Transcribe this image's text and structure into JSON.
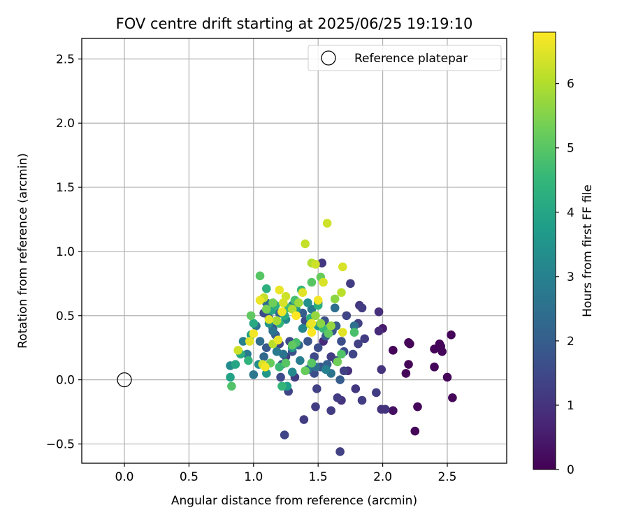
{
  "chart_data": {
    "type": "scatter",
    "title": "FOV centre drift starting at 2025/06/25 19:19:10",
    "xlabel": "Angular distance from reference (arcmin)",
    "ylabel": "Rotation from reference (arcmin)",
    "xlim": [
      -0.33,
      2.96
    ],
    "ylim": [
      -0.65,
      2.66
    ],
    "xticks": [
      0.0,
      0.5,
      1.0,
      1.5,
      2.0,
      2.5
    ],
    "xtick_labels": [
      "0.0",
      "0.5",
      "1.0",
      "1.5",
      "2.0",
      "2.5"
    ],
    "yticks": [
      -0.5,
      0.0,
      0.5,
      1.0,
      1.5,
      2.0,
      2.5
    ],
    "ytick_labels": [
      "−0.5",
      "0.0",
      "0.5",
      "1.0",
      "1.5",
      "2.0",
      "2.5"
    ],
    "grid": true,
    "legend": {
      "position": "upper right",
      "entries": [
        "Reference platepar"
      ]
    },
    "reference_point": {
      "x": 0.0,
      "y": 0.0,
      "label": "Reference platepar"
    },
    "colorbar": {
      "label": "Hours from first FF file",
      "colormap": "viridis",
      "range": [
        0,
        6.8
      ],
      "ticks": [
        0,
        1,
        2,
        3,
        4,
        5,
        6
      ],
      "tick_labels": [
        "0",
        "1",
        "2",
        "3",
        "4",
        "5",
        "6"
      ],
      "stops": [
        "#440154",
        "#482878",
        "#3e4a89",
        "#31688e",
        "#26828e",
        "#1f9e89",
        "#35b779",
        "#6ece58",
        "#b5de2b",
        "#fde725"
      ]
    },
    "points": [
      {
        "x": 2.08,
        "y": 0.23,
        "h": 0.1
      },
      {
        "x": 2.2,
        "y": 0.29,
        "h": 0.1
      },
      {
        "x": 2.21,
        "y": 0.28,
        "h": 0.1
      },
      {
        "x": 2.18,
        "y": 0.05,
        "h": 0.1
      },
      {
        "x": 2.2,
        "y": 0.12,
        "h": 0.1
      },
      {
        "x": 2.25,
        "y": -0.4,
        "h": 0.1
      },
      {
        "x": 2.27,
        "y": -0.21,
        "h": 0.1
      },
      {
        "x": 2.4,
        "y": 0.24,
        "h": 0.1
      },
      {
        "x": 2.44,
        "y": 0.28,
        "h": 0.1
      },
      {
        "x": 2.45,
        "y": 0.26,
        "h": 0.1
      },
      {
        "x": 2.46,
        "y": 0.22,
        "h": 0.1
      },
      {
        "x": 2.4,
        "y": 0.1,
        "h": 0.1
      },
      {
        "x": 2.5,
        "y": 0.02,
        "h": 0.1
      },
      {
        "x": 2.53,
        "y": 0.35,
        "h": 0.1
      },
      {
        "x": 2.54,
        "y": -0.14,
        "h": 0.1
      },
      {
        "x": 2.08,
        "y": -0.24,
        "h": 0.3
      },
      {
        "x": 2.0,
        "y": 0.4,
        "h": 0.5
      },
      {
        "x": 1.97,
        "y": 0.38,
        "h": 0.8
      },
      {
        "x": 1.97,
        "y": 0.53,
        "h": 0.9
      },
      {
        "x": 1.99,
        "y": 0.08,
        "h": 1.0
      },
      {
        "x": 2.02,
        "y": -0.23,
        "h": 1.0
      },
      {
        "x": 1.99,
        "y": -0.23,
        "h": 1.0
      },
      {
        "x": 1.95,
        "y": -0.1,
        "h": 1.2
      },
      {
        "x": 1.82,
        "y": 0.58,
        "h": 1.1
      },
      {
        "x": 1.84,
        "y": 0.56,
        "h": 1.2
      },
      {
        "x": 1.81,
        "y": 0.44,
        "h": 1.3
      },
      {
        "x": 1.86,
        "y": 0.32,
        "h": 1.2
      },
      {
        "x": 1.81,
        "y": 0.28,
        "h": 1.3
      },
      {
        "x": 1.79,
        "y": -0.07,
        "h": 1.1
      },
      {
        "x": 1.84,
        "y": -0.16,
        "h": 1.2
      },
      {
        "x": 1.75,
        "y": 0.75,
        "h": 1.2
      },
      {
        "x": 1.72,
        "y": 0.5,
        "h": 1.4
      },
      {
        "x": 1.7,
        "y": 0.07,
        "h": 1.3
      },
      {
        "x": 1.73,
        "y": 0.07,
        "h": 0.9
      },
      {
        "x": 1.68,
        "y": -0.16,
        "h": 1.0
      },
      {
        "x": 1.65,
        "y": -0.14,
        "h": 1.2
      },
      {
        "x": 1.67,
        "y": -0.56,
        "h": 1.3
      },
      {
        "x": 1.6,
        "y": -0.24,
        "h": 1.2
      },
      {
        "x": 1.53,
        "y": 0.91,
        "h": 1.1
      },
      {
        "x": 1.54,
        "y": 0.3,
        "h": 0.8
      },
      {
        "x": 1.48,
        "y": -0.21,
        "h": 1.2
      },
      {
        "x": 1.49,
        "y": -0.07,
        "h": 1.3
      },
      {
        "x": 1.39,
        "y": -0.31,
        "h": 1.2
      },
      {
        "x": 1.32,
        "y": 0.02,
        "h": 1.2
      },
      {
        "x": 1.27,
        "y": -0.09,
        "h": 1.4
      },
      {
        "x": 1.24,
        "y": -0.43,
        "h": 1.4
      },
      {
        "x": 1.21,
        "y": 0.02,
        "h": 1.5
      },
      {
        "x": 1.47,
        "y": 0.05,
        "h": 1.6
      },
      {
        "x": 1.52,
        "y": 0.1,
        "h": 1.9
      },
      {
        "x": 1.57,
        "y": 0.12,
        "h": 2.1
      },
      {
        "x": 1.6,
        "y": 0.18,
        "h": 1.2
      },
      {
        "x": 1.64,
        "y": 0.15,
        "h": 1.3
      },
      {
        "x": 1.7,
        "y": 0.22,
        "h": 1.6
      },
      {
        "x": 1.68,
        "y": 0.3,
        "h": 1.6
      },
      {
        "x": 1.77,
        "y": 0.2,
        "h": 1.4
      },
      {
        "x": 1.78,
        "y": 0.42,
        "h": 2.5
      },
      {
        "x": 1.63,
        "y": 0.56,
        "h": 2.4
      },
      {
        "x": 1.64,
        "y": 0.42,
        "h": 2.0
      },
      {
        "x": 1.61,
        "y": 0.38,
        "h": 1.8
      },
      {
        "x": 1.56,
        "y": 0.34,
        "h": 2.0
      },
      {
        "x": 1.55,
        "y": 0.46,
        "h": 1.7
      },
      {
        "x": 1.5,
        "y": 0.25,
        "h": 1.6
      },
      {
        "x": 1.47,
        "y": 0.18,
        "h": 1.5
      },
      {
        "x": 1.45,
        "y": 0.12,
        "h": 1.4
      },
      {
        "x": 1.42,
        "y": 0.3,
        "h": 1.8
      },
      {
        "x": 1.4,
        "y": 0.46,
        "h": 1.5
      },
      {
        "x": 1.38,
        "y": 0.52,
        "h": 2.0
      },
      {
        "x": 1.35,
        "y": 0.27,
        "h": 2.2
      },
      {
        "x": 1.3,
        "y": 0.22,
        "h": 1.7
      },
      {
        "x": 1.28,
        "y": 0.3,
        "h": 1.5
      },
      {
        "x": 1.25,
        "y": 0.18,
        "h": 1.3
      },
      {
        "x": 1.22,
        "y": 0.12,
        "h": 1.7
      },
      {
        "x": 1.2,
        "y": 0.28,
        "h": 1.4
      },
      {
        "x": 1.17,
        "y": 0.35,
        "h": 2.0
      },
      {
        "x": 1.15,
        "y": 0.4,
        "h": 1.8
      },
      {
        "x": 1.12,
        "y": 0.48,
        "h": 1.6
      },
      {
        "x": 1.1,
        "y": 0.25,
        "h": 1.9
      },
      {
        "x": 1.08,
        "y": 0.18,
        "h": 2.3
      },
      {
        "x": 1.05,
        "y": 0.3,
        "h": 2.4
      },
      {
        "x": 1.02,
        "y": 0.42,
        "h": 2.6
      },
      {
        "x": 1.0,
        "y": 0.04,
        "h": 2.7
      },
      {
        "x": 0.95,
        "y": 0.2,
        "h": 2.8
      },
      {
        "x": 0.92,
        "y": 0.3,
        "h": 3.0
      },
      {
        "x": 0.82,
        "y": 0.11,
        "h": 3.3
      },
      {
        "x": 1.08,
        "y": 0.52,
        "h": 1.5
      },
      {
        "x": 1.1,
        "y": 0.6,
        "h": 2.4
      },
      {
        "x": 1.12,
        "y": 0.44,
        "h": 3.4
      },
      {
        "x": 1.15,
        "y": 0.38,
        "h": 2.6
      },
      {
        "x": 1.2,
        "y": 0.52,
        "h": 2.2
      },
      {
        "x": 1.25,
        "y": 0.47,
        "h": 3.2
      },
      {
        "x": 1.3,
        "y": 0.58,
        "h": 2.9
      },
      {
        "x": 1.33,
        "y": 0.55,
        "h": 3.6
      },
      {
        "x": 1.38,
        "y": 0.4,
        "h": 3.1
      },
      {
        "x": 1.42,
        "y": 0.6,
        "h": 3.4
      },
      {
        "x": 1.45,
        "y": 0.55,
        "h": 2.8
      },
      {
        "x": 1.5,
        "y": 0.6,
        "h": 2.6
      },
      {
        "x": 1.5,
        "y": 0.42,
        "h": 3.7
      },
      {
        "x": 1.56,
        "y": 0.08,
        "h": 3.0
      },
      {
        "x": 1.6,
        "y": 0.05,
        "h": 2.6
      },
      {
        "x": 1.67,
        "y": 0.0,
        "h": 2.0
      },
      {
        "x": 1.48,
        "y": 0.1,
        "h": 2.5
      },
      {
        "x": 1.42,
        "y": 0.08,
        "h": 2.7
      },
      {
        "x": 1.36,
        "y": 0.15,
        "h": 2.9
      },
      {
        "x": 1.3,
        "y": 0.06,
        "h": 3.2
      },
      {
        "x": 1.26,
        "y": -0.05,
        "h": 3.8
      },
      {
        "x": 1.3,
        "y": 0.25,
        "h": 3.5
      },
      {
        "x": 1.23,
        "y": 0.2,
        "h": 2.6
      },
      {
        "x": 1.18,
        "y": 0.22,
        "h": 2.8
      },
      {
        "x": 1.1,
        "y": 0.05,
        "h": 3.6
      },
      {
        "x": 1.04,
        "y": 0.12,
        "h": 3.3
      },
      {
        "x": 0.82,
        "y": 0.02,
        "h": 3.9
      },
      {
        "x": 0.86,
        "y": 0.12,
        "h": 4.0
      },
      {
        "x": 0.9,
        "y": 0.2,
        "h": 4.2
      },
      {
        "x": 0.96,
        "y": 0.15,
        "h": 4.4
      },
      {
        "x": 0.98,
        "y": 0.35,
        "h": 3.9
      },
      {
        "x": 1.0,
        "y": 0.44,
        "h": 4.1
      },
      {
        "x": 1.1,
        "y": 0.71,
        "h": 4.3
      },
      {
        "x": 1.14,
        "y": 0.54,
        "h": 4.0
      },
      {
        "x": 1.17,
        "y": 0.58,
        "h": 4.3
      },
      {
        "x": 1.2,
        "y": 0.44,
        "h": 4.5
      },
      {
        "x": 1.24,
        "y": 0.5,
        "h": 4.2
      },
      {
        "x": 1.27,
        "y": 0.56,
        "h": 4.7
      },
      {
        "x": 1.32,
        "y": 0.62,
        "h": 4.8
      },
      {
        "x": 1.37,
        "y": 0.7,
        "h": 4.5
      },
      {
        "x": 1.44,
        "y": 0.48,
        "h": 4.2
      },
      {
        "x": 1.5,
        "y": 0.58,
        "h": 4.3
      },
      {
        "x": 1.54,
        "y": 0.4,
        "h": 4.6
      },
      {
        "x": 1.45,
        "y": 0.76,
        "h": 5.0
      },
      {
        "x": 1.52,
        "y": 0.8,
        "h": 5.2
      },
      {
        "x": 1.58,
        "y": 0.36,
        "h": 5.1
      },
      {
        "x": 1.65,
        "y": 0.14,
        "h": 5.3
      },
      {
        "x": 1.68,
        "y": 0.2,
        "h": 4.9
      },
      {
        "x": 1.78,
        "y": 0.37,
        "h": 4.8
      },
      {
        "x": 1.2,
        "y": 0.1,
        "h": 4.6
      },
      {
        "x": 1.25,
        "y": 0.13,
        "h": 5.0
      },
      {
        "x": 1.3,
        "y": 0.27,
        "h": 5.1
      },
      {
        "x": 1.33,
        "y": 0.29,
        "h": 4.8
      },
      {
        "x": 1.22,
        "y": -0.05,
        "h": 4.5
      },
      {
        "x": 1.13,
        "y": 0.13,
        "h": 5.2
      },
      {
        "x": 0.83,
        "y": -0.05,
        "h": 4.9
      },
      {
        "x": 0.98,
        "y": 0.5,
        "h": 5.1
      },
      {
        "x": 1.05,
        "y": 0.81,
        "h": 5.0
      },
      {
        "x": 1.1,
        "y": 0.55,
        "h": 5.4
      },
      {
        "x": 1.15,
        "y": 0.6,
        "h": 5.3
      },
      {
        "x": 1.4,
        "y": 0.07,
        "h": 5.2
      },
      {
        "x": 1.45,
        "y": 0.13,
        "h": 5.0
      },
      {
        "x": 1.63,
        "y": 0.63,
        "h": 5.6
      },
      {
        "x": 1.6,
        "y": 0.42,
        "h": 5.7
      },
      {
        "x": 1.52,
        "y": 0.44,
        "h": 5.6
      },
      {
        "x": 1.48,
        "y": 0.5,
        "h": 5.7
      },
      {
        "x": 1.44,
        "y": 0.43,
        "h": 6.1
      },
      {
        "x": 1.35,
        "y": 0.6,
        "h": 5.8
      },
      {
        "x": 1.3,
        "y": 0.55,
        "h": 6.0
      },
      {
        "x": 1.25,
        "y": 0.65,
        "h": 6.3
      },
      {
        "x": 1.18,
        "y": 0.46,
        "h": 5.9
      },
      {
        "x": 1.12,
        "y": 0.47,
        "h": 6.5
      },
      {
        "x": 1.08,
        "y": 0.64,
        "h": 6.2
      },
      {
        "x": 1.05,
        "y": 0.62,
        "h": 6.6
      },
      {
        "x": 1.0,
        "y": 0.36,
        "h": 6.7
      },
      {
        "x": 0.97,
        "y": 0.3,
        "h": 6.5
      },
      {
        "x": 0.88,
        "y": 0.23,
        "h": 6.3
      },
      {
        "x": 1.07,
        "y": 0.12,
        "h": 6.4
      },
      {
        "x": 1.09,
        "y": 0.1,
        "h": 6.7
      },
      {
        "x": 1.15,
        "y": 0.28,
        "h": 6.1
      },
      {
        "x": 1.19,
        "y": 0.31,
        "h": 6.6
      },
      {
        "x": 1.23,
        "y": 0.6,
        "h": 6.4
      },
      {
        "x": 1.2,
        "y": 0.7,
        "h": 6.6
      },
      {
        "x": 1.38,
        "y": 0.68,
        "h": 6.5
      },
      {
        "x": 1.4,
        "y": 1.06,
        "h": 6.2
      },
      {
        "x": 1.45,
        "y": 0.91,
        "h": 6.0
      },
      {
        "x": 1.48,
        "y": 0.9,
        "h": 6.3
      },
      {
        "x": 1.54,
        "y": 0.76,
        "h": 6.4
      },
      {
        "x": 1.57,
        "y": 1.22,
        "h": 6.3
      },
      {
        "x": 1.68,
        "y": 0.68,
        "h": 6.1
      },
      {
        "x": 1.69,
        "y": 0.88,
        "h": 6.4
      },
      {
        "x": 1.69,
        "y": 0.37,
        "h": 6.5
      },
      {
        "x": 1.5,
        "y": 0.62,
        "h": 6.7
      },
      {
        "x": 1.45,
        "y": 0.37,
        "h": 6.8
      },
      {
        "x": 1.45,
        "y": 0.44,
        "h": 6.6
      },
      {
        "x": 1.33,
        "y": 0.5,
        "h": 6.8
      },
      {
        "x": 1.22,
        "y": 0.53,
        "h": 6.7
      }
    ]
  }
}
